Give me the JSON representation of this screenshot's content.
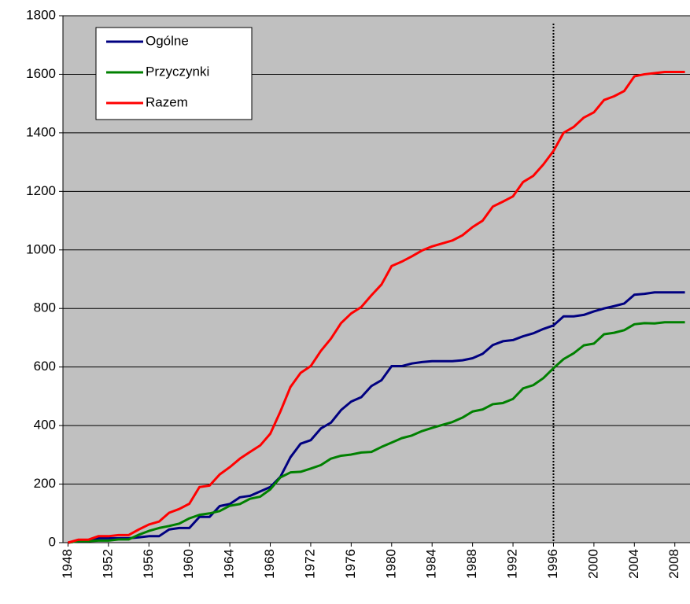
{
  "chart_data": {
    "type": "line",
    "x": [
      1948,
      1949,
      1950,
      1951,
      1952,
      1953,
      1954,
      1955,
      1956,
      1957,
      1958,
      1959,
      1960,
      1961,
      1962,
      1963,
      1964,
      1965,
      1966,
      1967,
      1968,
      1969,
      1970,
      1971,
      1972,
      1973,
      1974,
      1975,
      1976,
      1977,
      1978,
      1979,
      1980,
      1981,
      1982,
      1983,
      1984,
      1985,
      1986,
      1987,
      1988,
      1989,
      1990,
      1991,
      1992,
      1993,
      1994,
      1995,
      1996,
      1997,
      1998,
      1999,
      2000,
      2001,
      2002,
      2003,
      2004,
      2005,
      2006,
      2007,
      2008,
      2009
    ],
    "series": [
      {
        "name": "Ogólne",
        "color": "#000080",
        "values": [
          0,
          5,
          5,
          15,
          15,
          15,
          15,
          18,
          22,
          22,
          45,
          50,
          50,
          88,
          88,
          125,
          132,
          155,
          160,
          175,
          190,
          225,
          292,
          338,
          350,
          390,
          410,
          453,
          482,
          497,
          535,
          555,
          603,
          603,
          612,
          617,
          620,
          620,
          620,
          623,
          630,
          645,
          675,
          688,
          692,
          705,
          715,
          730,
          742,
          773,
          773,
          778,
          790,
          800,
          808,
          817,
          847,
          850,
          855,
          855,
          855,
          855
        ]
      },
      {
        "name": "Przyczynki",
        "color": "#008000",
        "values": [
          0,
          5,
          5,
          7,
          7,
          11,
          11,
          27,
          40,
          50,
          57,
          65,
          83,
          95,
          100,
          108,
          126,
          132,
          150,
          157,
          182,
          223,
          240,
          242,
          253,
          265,
          287,
          297,
          301,
          308,
          310,
          327,
          342,
          357,
          366,
          381,
          392,
          402,
          412,
          427,
          448,
          455,
          473,
          477,
          491,
          527,
          538,
          562,
          596,
          627,
          647,
          674,
          680,
          712,
          717,
          726,
          746,
          750,
          749,
          753,
          753,
          753
        ]
      },
      {
        "name": "Razem",
        "color": "#ff0000",
        "values": [
          0,
          10,
          10,
          22,
          22,
          26,
          26,
          45,
          62,
          72,
          102,
          115,
          133,
          190,
          195,
          233,
          258,
          287,
          310,
          332,
          372,
          448,
          532,
          580,
          603,
          655,
          697,
          750,
          783,
          805,
          845,
          882,
          945,
          960,
          978,
          998,
          1012,
          1022,
          1032,
          1050,
          1078,
          1100,
          1148,
          1165,
          1183,
          1232,
          1253,
          1292,
          1338,
          1400,
          1420,
          1452,
          1470,
          1512,
          1525,
          1543,
          1593,
          1600,
          1604,
          1608,
          1608,
          1608
        ]
      }
    ],
    "xlim": [
      1947.5,
      2009.5
    ],
    "xticks": [
      1948,
      1952,
      1956,
      1960,
      1964,
      1968,
      1972,
      1976,
      1980,
      1984,
      1988,
      1992,
      1996,
      2000,
      2004,
      2008
    ],
    "ylim": [
      0,
      1800
    ],
    "yticks": [
      0,
      200,
      400,
      600,
      800,
      1000,
      1200,
      1400,
      1600,
      1800
    ],
    "grid": true,
    "vline": 1996,
    "legend": "top-left"
  }
}
